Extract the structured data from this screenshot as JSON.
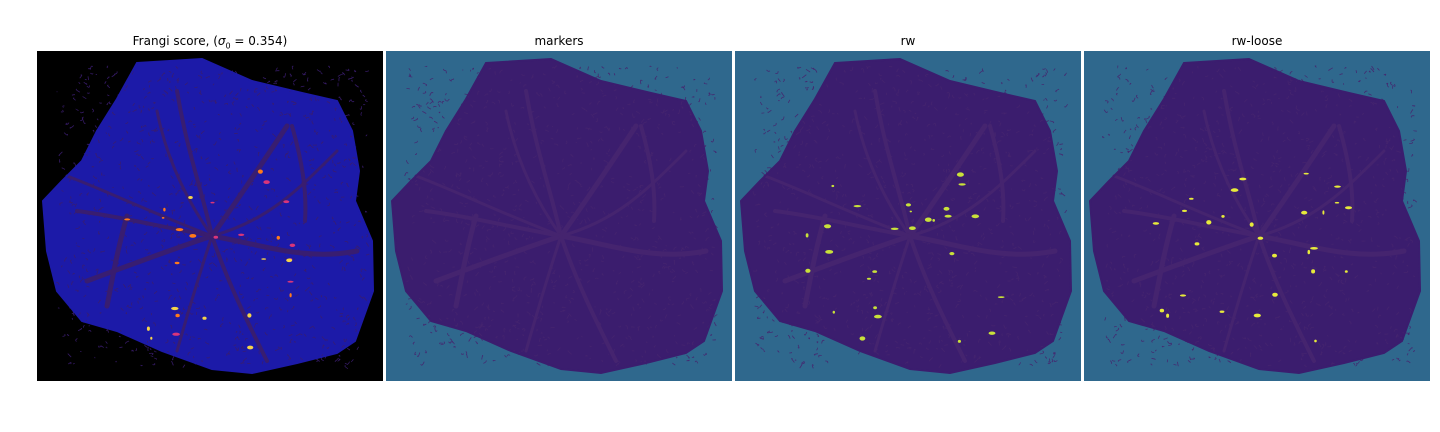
{
  "panels": [
    {
      "title": "Frangi score, ",
      "title_math": {
        "open": "(",
        "sym": "σ",
        "sub": "0",
        "rest": " = 0.354)"
      },
      "background": "#000000",
      "fill": "#1c1aa8",
      "vessel": "#3a1d6e",
      "highlight": [
        "#ff7a1a",
        "#f5d34a",
        "#d9357a"
      ]
    },
    {
      "title": "markers",
      "background": "#2f688d",
      "fill": "#3b1d6e",
      "vessel": "#46256f"
    },
    {
      "title": "rw",
      "background": "#2f688d",
      "fill": "#3b1d6e",
      "vessel": "#46256f",
      "highlight": [
        "#c9e13a"
      ]
    },
    {
      "title": "rw-loose",
      "background": "#2f688d",
      "fill": "#3b1d6e",
      "vessel": "#46256f",
      "highlight": [
        "#e7ea3b"
      ]
    }
  ]
}
